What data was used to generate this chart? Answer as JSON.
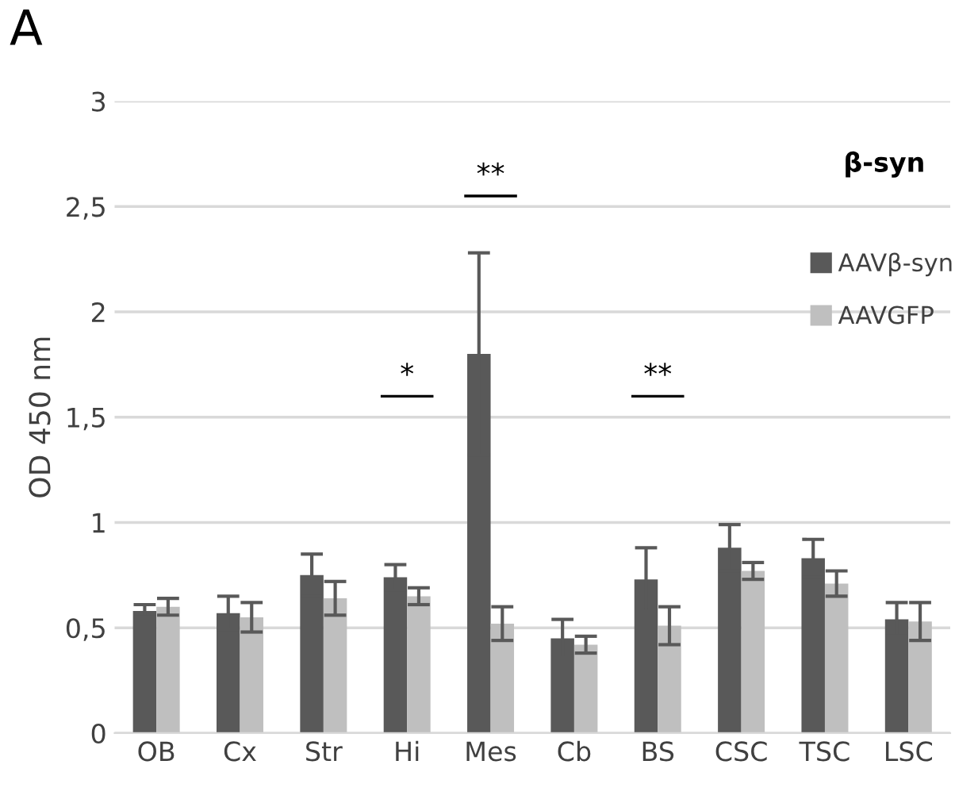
{
  "chart_data": {
    "type": "bar",
    "title": "β-syn",
    "ylabel": "OD 450 nm",
    "categories": [
      "OB",
      "Cx",
      "Str",
      "Hi",
      "Mes",
      "Cb",
      "BS",
      "CSC",
      "TSC",
      "LSC"
    ],
    "series": [
      {
        "name": "AAVβ-syn",
        "color": "#595959",
        "values": [
          0.58,
          0.57,
          0.75,
          0.74,
          1.8,
          0.45,
          0.73,
          0.88,
          0.83,
          0.54
        ],
        "errors": [
          0.03,
          0.08,
          0.1,
          0.06,
          0.48,
          0.09,
          0.15,
          0.11,
          0.09,
          0.08
        ]
      },
      {
        "name": "AAVGFP",
        "color": "#bfbfbf",
        "values": [
          0.6,
          0.55,
          0.64,
          0.65,
          0.52,
          0.42,
          0.51,
          0.77,
          0.71,
          0.53
        ],
        "errors": [
          0.04,
          0.07,
          0.08,
          0.04,
          0.08,
          0.04,
          0.09,
          0.04,
          0.06,
          0.09
        ]
      }
    ],
    "ylim": [
      0,
      3
    ],
    "yticks": [
      0,
      {
        "value": 0.5,
        "label": "0,5"
      },
      1,
      {
        "value": 1.5,
        "label": "1,5"
      },
      2,
      {
        "value": 2.5,
        "label": "2,5"
      },
      3
    ],
    "grid": "y",
    "legend": "right",
    "annotations": [
      "A",
      "*",
      "**",
      "**"
    ]
  }
}
